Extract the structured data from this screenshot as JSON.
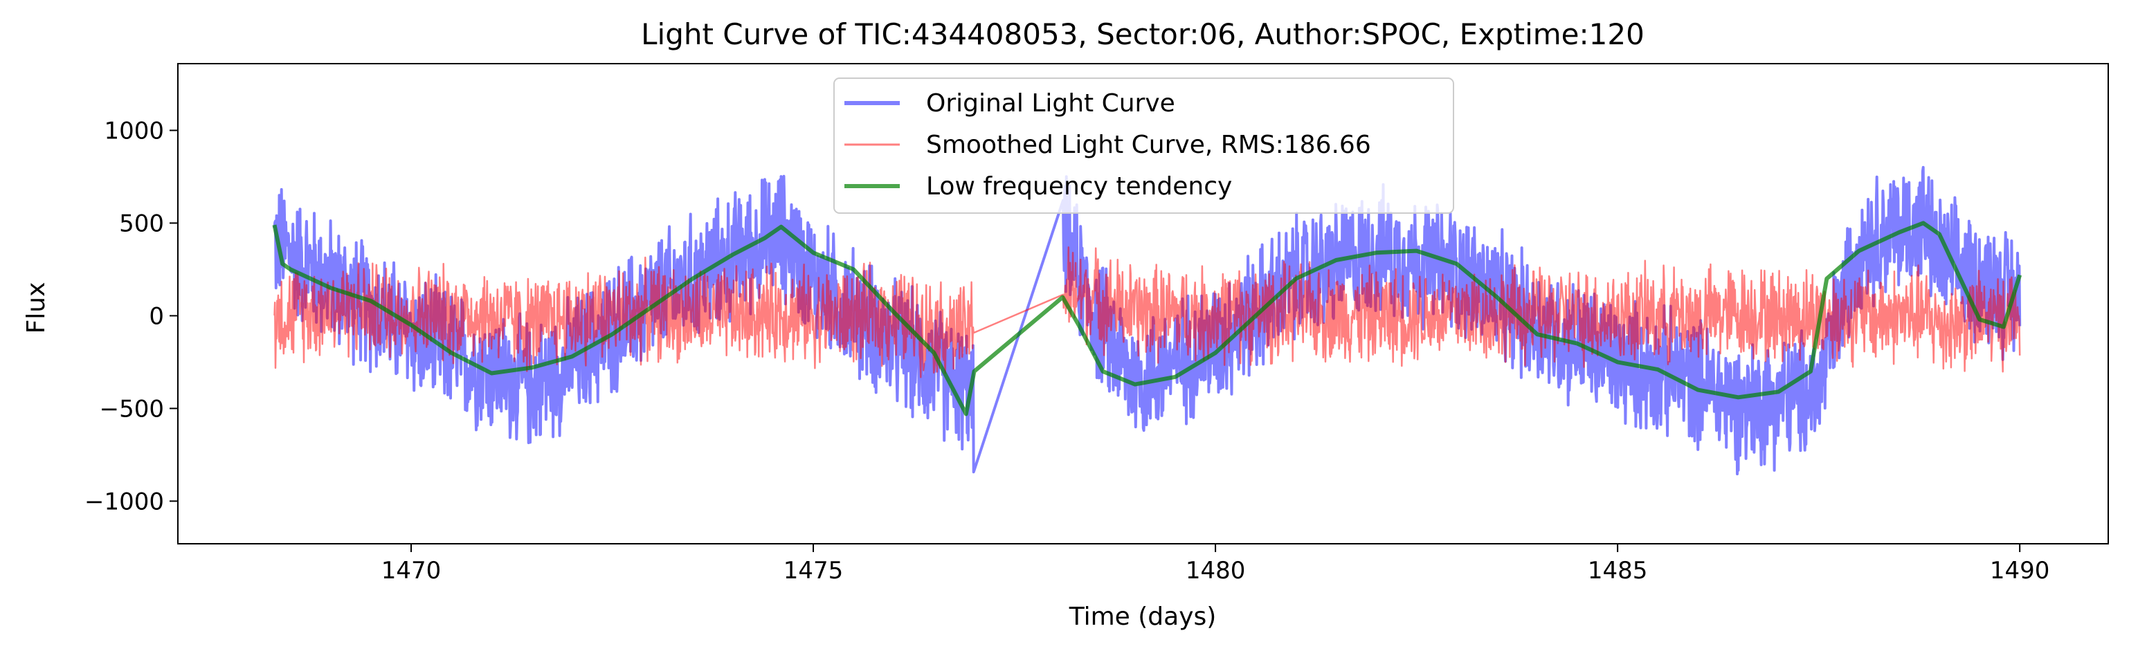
{
  "chart_data": {
    "type": "line",
    "title": "Light Curve of TIC:434408053, Sector:06, Author:SPOC, Exptime:120",
    "xlabel": "Time (days)",
    "ylabel": "Flux",
    "xlim": [
      1467.1,
      1491.1
    ],
    "ylim": [
      -1230,
      1360
    ],
    "xticks": [
      1470,
      1475,
      1480,
      1485,
      1490
    ],
    "xtick_labels": [
      "1470",
      "1475",
      "1480",
      "1485",
      "1490"
    ],
    "yticks": [
      -1000,
      -500,
      0,
      500,
      1000
    ],
    "ytick_labels": [
      "−1000",
      "−500",
      "0",
      "500",
      "1000"
    ],
    "grid": false,
    "legend_position": "upper center",
    "data_gap": [
      1477.0,
      1478.1
    ],
    "series": [
      {
        "name": "Original Light Curve",
        "color": "#0000ff",
        "opacity": 0.5,
        "noise_amplitude": 400,
        "x": [
          1468.3,
          1469.0,
          1470.0,
          1471.0,
          1471.5,
          1472.0,
          1473.0,
          1474.0,
          1474.6,
          1475.0,
          1476.0,
          1476.9,
          1477.0,
          1478.1,
          1478.5,
          1479.0,
          1480.0,
          1481.0,
          1482.0,
          1483.0,
          1484.0,
          1485.0,
          1486.0,
          1486.5,
          1487.0,
          1487.5,
          1488.0,
          1488.8,
          1489.0,
          1490.0
        ],
        "values": [
          400,
          180,
          -100,
          -300,
          -380,
          -250,
          80,
          320,
          450,
          200,
          -150,
          -400,
          -500,
          450,
          0,
          -350,
          -150,
          200,
          350,
          250,
          -50,
          -250,
          -350,
          -480,
          -450,
          -400,
          400,
          500,
          300,
          100
        ]
      },
      {
        "name": "Smoothed Light Curve, RMS:186.66",
        "color": "#ff0000",
        "opacity": 0.5,
        "noise_amplitude": 300,
        "x": [
          1468.3,
          1469.0,
          1470.0,
          1471.0,
          1471.5,
          1472.0,
          1473.0,
          1474.0,
          1474.6,
          1475.0,
          1476.0,
          1476.9,
          1477.0,
          1478.1,
          1478.5,
          1479.0,
          1480.0,
          1481.0,
          1482.0,
          1483.0,
          1484.0,
          1485.0,
          1486.0,
          1486.5,
          1487.0,
          1487.5,
          1488.0,
          1488.8,
          1489.0,
          1490.0
        ],
        "values": [
          0,
          50,
          20,
          0,
          -50,
          0,
          20,
          0,
          20,
          0,
          0,
          -100,
          0,
          130,
          100,
          20,
          0,
          20,
          0,
          20,
          0,
          0,
          0,
          20,
          0,
          0,
          0,
          0,
          -50,
          0
        ]
      },
      {
        "name": "Low frequency tendency",
        "color": "#008000",
        "opacity": 0.7,
        "x": [
          1468.3,
          1468.4,
          1468.5,
          1469.0,
          1469.5,
          1470.0,
          1470.5,
          1471.0,
          1471.5,
          1472.0,
          1472.5,
          1473.0,
          1473.5,
          1474.0,
          1474.4,
          1474.6,
          1475.0,
          1475.5,
          1476.0,
          1476.5,
          1476.9,
          1477.0,
          1478.1,
          1478.3,
          1478.6,
          1479.0,
          1479.5,
          1480.0,
          1480.5,
          1481.0,
          1481.5,
          1482.0,
          1482.5,
          1483.0,
          1483.5,
          1484.0,
          1484.5,
          1485.0,
          1485.5,
          1486.0,
          1486.5,
          1487.0,
          1487.4,
          1487.6,
          1488.0,
          1488.5,
          1488.8,
          1489.0,
          1489.5,
          1489.8,
          1490.0
        ],
        "values": [
          490,
          280,
          250,
          150,
          80,
          -50,
          -200,
          -310,
          -280,
          -220,
          -100,
          50,
          200,
          330,
          420,
          480,
          340,
          250,
          20,
          -200,
          -530,
          -300,
          100,
          -50,
          -300,
          -370,
          -330,
          -200,
          0,
          200,
          300,
          340,
          350,
          280,
          100,
          -100,
          -150,
          -250,
          -290,
          -400,
          -440,
          -410,
          -300,
          200,
          350,
          450,
          500,
          440,
          -20,
          -60,
          220
        ]
      }
    ]
  },
  "colors": {
    "original": "#0000ff",
    "smoothed": "#ff0000",
    "trend": "#008000"
  }
}
